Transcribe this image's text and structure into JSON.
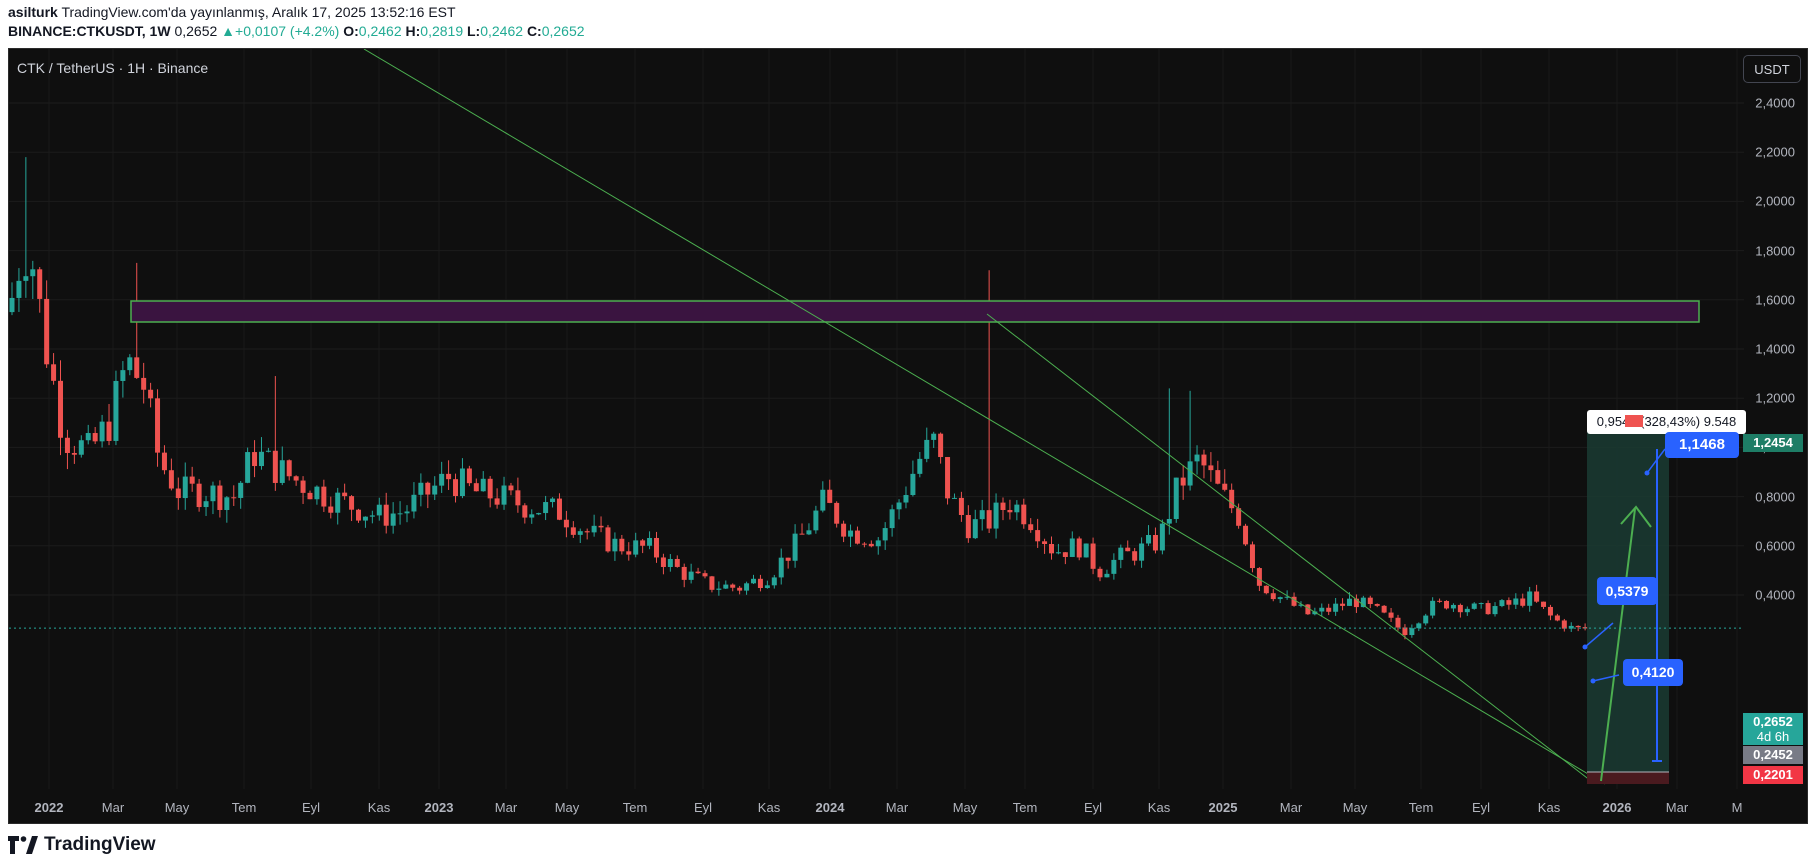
{
  "header": {
    "author": "asilturk",
    "published": "TradingView.com'da yayınlanmış, Aralık 17, 2025 13:52:16 EST",
    "ticker": "BINANCE:CTKUSDT, 1W",
    "price": "0,2652",
    "change": "+0,0107 (+4.2%)",
    "o_label": "O:",
    "o": "0,2462",
    "h_label": "H:",
    "h": "0,2819",
    "l_label": "L:",
    "l": "0,2462",
    "c_label": "C:",
    "c": "0,2652"
  },
  "chart": {
    "symbol_label": "CTK / TetherUS · 1H · Binance",
    "currency": "USDT",
    "y_ticks": [
      "2,4000",
      "2,2000",
      "2,0000",
      "1,8000",
      "1,6000",
      "1,4000",
      "1,2000",
      "1,0000",
      "0,8000",
      "0,6000",
      "0,4000"
    ],
    "x_ticks": [
      "2022",
      "Mar",
      "May",
      "Tem",
      "Eyl",
      "Kas",
      "2023",
      "Mar",
      "May",
      "Tem",
      "Eyl",
      "Kas",
      "2024",
      "Mar",
      "May",
      "Tem",
      "Eyl",
      "Kas",
      "2025",
      "Mar",
      "May",
      "Tem",
      "Eyl",
      "Kas",
      "2026",
      "Mar",
      "M"
    ],
    "price_tags": {
      "target": "1,2454",
      "current": "0,2652",
      "countdown": "4d 6h",
      "entry": "0,2452",
      "stop": "0,2201"
    },
    "annotations": {
      "target_label": "1,1468",
      "mid_label": "0,5379",
      "low_label": "0,4120",
      "measure_text": "0,9549 (328,43%) 9.548"
    },
    "colors": {
      "up": "#26a69a",
      "down": "#ef5350",
      "background": "#0f0f0f",
      "trendline": "#4caf50",
      "zone_fill": "#3a1440",
      "annotation_blue": "#2962ff"
    },
    "chart_data": {
      "type": "candlestick",
      "title": "CTK / TetherUS · 1H · Binance",
      "ylim": [
        0.18,
        2.62
      ],
      "xlim": [
        "2021-12-10",
        "2026-06-01"
      ],
      "key_points": [
        {
          "x": "2021-12",
          "high": 2.18,
          "low": 1.2
        },
        {
          "x": "2022-03",
          "high": 1.75,
          "low": 0.95
        },
        {
          "x": "2022-08",
          "high": 1.29,
          "low": 0.78
        },
        {
          "x": "2023-11",
          "low": 0.4
        },
        {
          "x": "2024-03",
          "high": 1.09
        },
        {
          "x": "2024-05",
          "high": 1.72
        },
        {
          "x": "2024-11",
          "high": 1.24
        },
        {
          "x": "2025-07",
          "low": 0.22
        },
        {
          "x": "2025-12",
          "close": 0.2652
        }
      ],
      "resistance_zone": [
        1.68,
        1.76
      ],
      "last_price": 0.2652
    }
  },
  "footer": {
    "brand": "TradingView"
  }
}
